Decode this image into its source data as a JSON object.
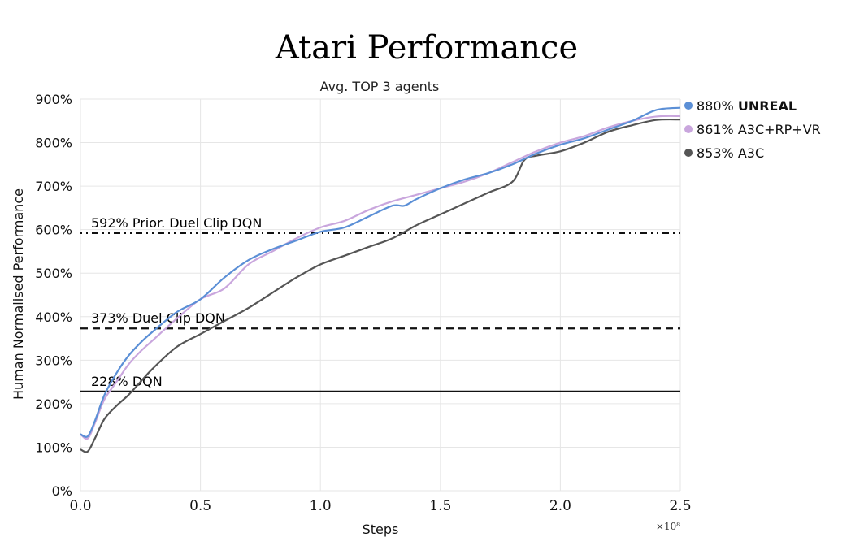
{
  "chart_data": {
    "type": "line",
    "title": "Atari Performance",
    "subtitle": "Avg. TOP 3 agents",
    "xlabel": "Steps",
    "ylabel": "Human Normalised Performance",
    "x_multiplier": "×10⁸",
    "xlim": [
      0,
      2.5
    ],
    "ylim": [
      0,
      900
    ],
    "x_ticks": [
      "0.0",
      "0.5",
      "1.0",
      "1.5",
      "2.0",
      "2.5"
    ],
    "y_ticks": [
      "0%",
      "100%",
      "200%",
      "300%",
      "400%",
      "500%",
      "600%",
      "700%",
      "800%",
      "900%"
    ],
    "grid": true,
    "legend_position": "right",
    "reference_lines": [
      {
        "label": "592% Prior. Duel Clip DQN",
        "value": 592,
        "style": "dashdot"
      },
      {
        "label": "373% Duel Clip DQN",
        "value": 373,
        "style": "dashed"
      },
      {
        "label": "228% DQN",
        "value": 228,
        "style": "solid"
      }
    ],
    "series": [
      {
        "name": "UNREAL",
        "legend_label": "880% ",
        "legend_name": "UNREAL",
        "bold": true,
        "color": "#5b8fd6",
        "x": [
          0,
          0.03,
          0.06,
          0.1,
          0.15,
          0.2,
          0.25,
          0.3,
          0.4,
          0.5,
          0.6,
          0.7,
          0.8,
          0.9,
          1.0,
          1.1,
          1.2,
          1.3,
          1.35,
          1.4,
          1.5,
          1.6,
          1.7,
          1.8,
          1.9,
          2.0,
          2.1,
          2.2,
          2.3,
          2.4,
          2.5
        ],
        "y": [
          130,
          125,
          160,
          220,
          270,
          310,
          340,
          365,
          410,
          440,
          490,
          530,
          555,
          575,
          595,
          605,
          630,
          655,
          655,
          670,
          695,
          715,
          730,
          750,
          775,
          795,
          810,
          830,
          850,
          875,
          880
        ]
      },
      {
        "name": "A3C+RP+VR",
        "legend_label": "861% ",
        "legend_name": "A3C+RP+VR",
        "bold": false,
        "color": "#c9a6dd",
        "x": [
          0,
          0.03,
          0.06,
          0.1,
          0.15,
          0.2,
          0.25,
          0.3,
          0.4,
          0.5,
          0.6,
          0.7,
          0.8,
          0.9,
          1.0,
          1.1,
          1.2,
          1.3,
          1.4,
          1.5,
          1.6,
          1.7,
          1.8,
          1.9,
          2.0,
          2.1,
          2.2,
          2.3,
          2.4,
          2.5
        ],
        "y": [
          130,
          120,
          155,
          210,
          250,
          290,
          320,
          345,
          395,
          440,
          465,
          520,
          550,
          580,
          605,
          620,
          645,
          665,
          680,
          695,
          710,
          730,
          755,
          780,
          800,
          815,
          835,
          850,
          860,
          861
        ]
      },
      {
        "name": "A3C",
        "legend_label": "853% ",
        "legend_name": "A3C",
        "bold": false,
        "color": "#555555",
        "x": [
          0,
          0.03,
          0.06,
          0.1,
          0.15,
          0.2,
          0.25,
          0.3,
          0.4,
          0.5,
          0.6,
          0.7,
          0.8,
          0.9,
          1.0,
          1.1,
          1.2,
          1.3,
          1.4,
          1.5,
          1.6,
          1.7,
          1.8,
          1.85,
          1.9,
          2.0,
          2.1,
          2.2,
          2.3,
          2.4,
          2.5
        ],
        "y": [
          95,
          90,
          120,
          165,
          195,
          220,
          250,
          280,
          330,
          360,
          390,
          420,
          455,
          490,
          520,
          540,
          560,
          580,
          610,
          635,
          660,
          685,
          710,
          760,
          770,
          780,
          800,
          825,
          840,
          852,
          853
        ]
      }
    ]
  }
}
